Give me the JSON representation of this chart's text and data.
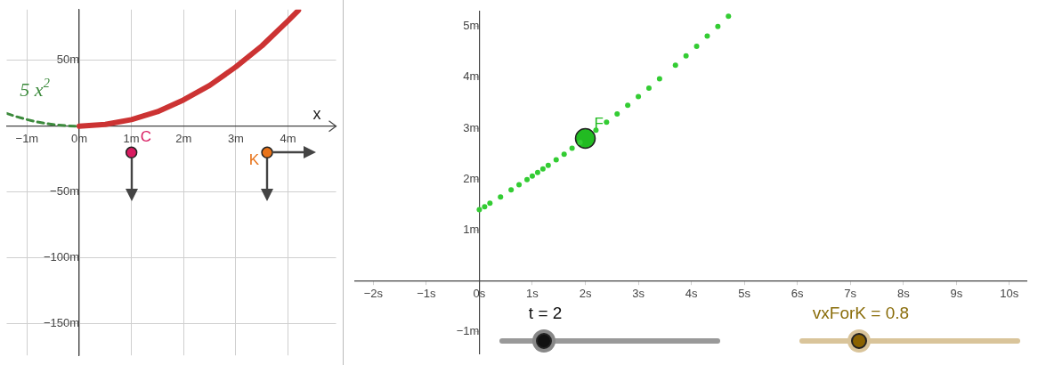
{
  "chart_data": [
    {
      "type": "line",
      "xlabel": "x",
      "xlim": [
        -1.39,
        4.92
      ],
      "ylim": [
        -174,
        88.5
      ],
      "xticks": [
        {
          "value": -1,
          "label": "−1m"
        },
        {
          "value": 0,
          "label": "0m"
        },
        {
          "value": 1,
          "label": "1m"
        },
        {
          "value": 2,
          "label": "2m"
        },
        {
          "value": 3,
          "label": "3m"
        },
        {
          "value": 4,
          "label": "4m"
        }
      ],
      "yticks": [
        {
          "value": 50,
          "label": "50m"
        },
        {
          "value": -50,
          "label": "−50m"
        },
        {
          "value": -100,
          "label": "−100m"
        },
        {
          "value": -150,
          "label": "−150m"
        }
      ],
      "grid": true,
      "series": [
        {
          "name": "5 x$^{2}$",
          "color": "#3c8a3c",
          "line_style": "dashed",
          "x": [
            -1.39,
            -1.2,
            -1,
            -0.8,
            -0.6,
            -0.4,
            -0.2,
            0
          ],
          "values": [
            9.7,
            7.2,
            5,
            3.2,
            1.8,
            0.8,
            0.2,
            0
          ]
        },
        {
          "color": "#cc3333",
          "x": [
            0,
            0.5,
            1,
            1.5,
            2,
            2.5,
            3,
            3.5,
            4,
            4.2
          ],
          "values": [
            0,
            1.3,
            5,
            11,
            20,
            31,
            45,
            61,
            80,
            88
          ]
        },
        {
          "type": "scatter",
          "name": "C",
          "color": "#d81b60",
          "x": [
            1
          ],
          "values": [
            -20
          ]
        },
        {
          "type": "scatter",
          "name": "K",
          "color": "#e8731a",
          "x": [
            3.6
          ],
          "values": [
            -20
          ]
        }
      ]
    },
    {
      "type": "scatter",
      "xlim": [
        -2.35,
        10.33
      ],
      "ylim": [
        -1.43,
        5.3
      ],
      "xticks": [
        {
          "value": -2,
          "label": "−2s"
        },
        {
          "value": -1,
          "label": "−1s"
        },
        {
          "value": 0,
          "label": "0s"
        },
        {
          "value": 1,
          "label": "1s"
        },
        {
          "value": 2,
          "label": "2s"
        },
        {
          "value": 3,
          "label": "3s"
        },
        {
          "value": 4,
          "label": "4s"
        },
        {
          "value": 5,
          "label": "5s"
        },
        {
          "value": 6,
          "label": "6s"
        },
        {
          "value": 7,
          "label": "7s"
        },
        {
          "value": 8,
          "label": "8s"
        },
        {
          "value": 9,
          "label": "9s"
        },
        {
          "value": 10,
          "label": "10s"
        }
      ],
      "yticks": [
        {
          "value": -1,
          "label": "−1m"
        },
        {
          "value": 1,
          "label": "1m"
        },
        {
          "value": 2,
          "label": "2m"
        },
        {
          "value": 3,
          "label": "3m"
        },
        {
          "value": 4,
          "label": "4m"
        },
        {
          "value": 5,
          "label": "5m"
        }
      ],
      "grid": false,
      "annotations": [
        "t = 2",
        "vxForK = 0.8"
      ],
      "series": [
        {
          "color": "#33cc33",
          "x": [
            0,
            0.1,
            0.2,
            0.4,
            0.6,
            0.75,
            0.9,
            1.0,
            1.1,
            1.2,
            1.3,
            1.45,
            1.6,
            1.75,
            1.9,
            2.2,
            2.4,
            2.6,
            2.8,
            3.0,
            3.2,
            3.4,
            3.7,
            3.9,
            4.1,
            4.3,
            4.5,
            4.7
          ],
          "values": [
            1.4,
            1.46,
            1.53,
            1.65,
            1.79,
            1.89,
            1.99,
            2.06,
            2.13,
            2.2,
            2.27,
            2.38,
            2.49,
            2.61,
            2.72,
            2.96,
            3.12,
            3.28,
            3.45,
            3.62,
            3.79,
            3.97,
            4.24,
            4.42,
            4.61,
            4.81,
            5.0,
            5.2
          ]
        },
        {
          "name": "F",
          "color": "#22bb22",
          "x": [
            2
          ],
          "values": [
            2.8
          ]
        }
      ]
    }
  ]
}
